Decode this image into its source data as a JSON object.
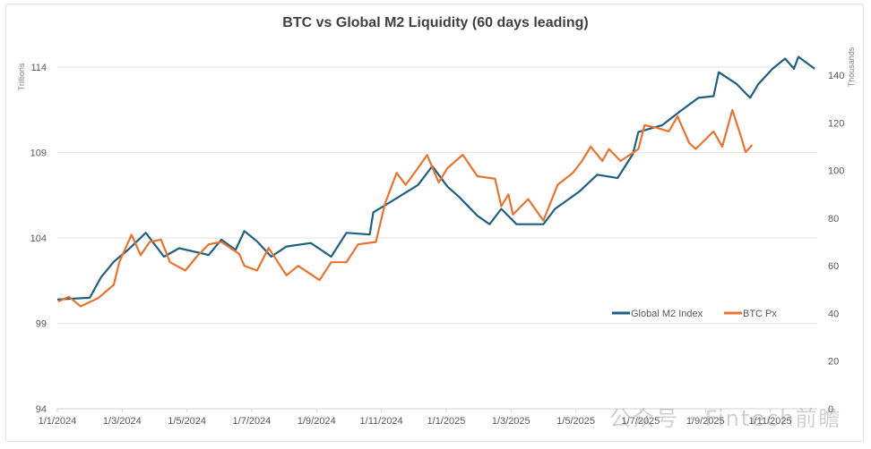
{
  "chart_data": {
    "type": "line",
    "title": "BTC vs Global M2 Liquidity (60 days leading)",
    "x_unit": "months since 1/1/2024",
    "x_tick_labels": [
      "1/1/2024",
      "1/3/2024",
      "1/5/2024",
      "1/7/2024",
      "1/9/2024",
      "1/11/2024",
      "1/1/2025",
      "1/3/2025",
      "1/5/2025",
      "1/7/2025",
      "1/9/2025",
      "1/11/2025"
    ],
    "xlim": [
      0,
      23.45
    ],
    "ylabel": "Trillions",
    "ylim": [
      94,
      114
    ],
    "y_ticks": [
      94,
      99,
      104,
      109,
      114
    ],
    "y2label": "Thousands",
    "y2lim": [
      0,
      143.4
    ],
    "y2_ticks": [
      0,
      20,
      40,
      60,
      80,
      100,
      120,
      140
    ],
    "grid": true,
    "legend_position": "bottom-right",
    "series": [
      {
        "name": "Global M2 Index",
        "axis": "left",
        "color": "#1f5f7f",
        "x": [
          0,
          1.0,
          1.35,
          1.74,
          2.18,
          2.73,
          3.29,
          3.76,
          4.67,
          5.06,
          5.5,
          5.77,
          6.16,
          6.6,
          7.07,
          7.82,
          8.45,
          8.92,
          9.64,
          9.75,
          10.19,
          11.13,
          11.57,
          12.04,
          12.4,
          12.96,
          13.34,
          13.7,
          14.17,
          15.0,
          15.36,
          16.1,
          16.66,
          17.29,
          17.76,
          17.93,
          18.67,
          19.14,
          19.78,
          20.25,
          20.41,
          20.97,
          21.38,
          21.63,
          22.07,
          22.46,
          22.73,
          22.87,
          23.37
        ],
        "values": [
          100.4,
          100.5,
          101.7,
          102.6,
          103.3,
          104.3,
          102.9,
          103.4,
          103.0,
          103.9,
          103.3,
          104.4,
          103.8,
          102.9,
          103.5,
          103.7,
          102.9,
          104.3,
          104.2,
          105.5,
          106.0,
          107.1,
          108.2,
          107.0,
          106.4,
          105.3,
          104.8,
          105.7,
          104.8,
          104.8,
          105.7,
          106.7,
          107.7,
          107.5,
          108.9,
          110.2,
          110.6,
          111.3,
          112.2,
          112.3,
          113.7,
          113.0,
          112.2,
          113.0,
          113.9,
          114.5,
          113.9,
          114.6,
          113.9
        ]
      },
      {
        "name": "BTC Px",
        "axis": "right",
        "color": "#e8732f",
        "x": [
          0.03,
          0.36,
          0.72,
          1.27,
          1.74,
          1.91,
          2.29,
          2.57,
          2.85,
          3.2,
          3.48,
          3.95,
          4.31,
          4.67,
          5.06,
          5.61,
          5.77,
          6.16,
          6.52,
          7.07,
          7.43,
          8.09,
          8.45,
          8.92,
          9.28,
          9.83,
          10.11,
          10.47,
          10.75,
          11.13,
          11.41,
          11.77,
          12.04,
          12.51,
          12.96,
          13.51,
          13.7,
          13.92,
          14.06,
          14.53,
          15.0,
          15.44,
          15.91,
          16.19,
          16.46,
          16.82,
          17.02,
          17.38,
          17.93,
          18.12,
          18.48,
          18.87,
          19.14,
          19.5,
          19.7,
          20.25,
          20.52,
          20.83,
          21.08,
          21.24,
          21.44
        ],
        "values": [
          45,
          47,
          43,
          46.5,
          52,
          61.5,
          73,
          64.5,
          70,
          71,
          61.5,
          58,
          64,
          69,
          70,
          65,
          60,
          58,
          67.5,
          56,
          60,
          54,
          61.5,
          61.5,
          69,
          70,
          86,
          99,
          94,
          101,
          106.5,
          95,
          101,
          106.6,
          97.6,
          96.5,
          85,
          90,
          81.5,
          88,
          79,
          94,
          99,
          104,
          110,
          104,
          109,
          104,
          109,
          119,
          118,
          116.4,
          122.7,
          111.5,
          109,
          116.4,
          110,
          125.4,
          115,
          107.7,
          110.7
        ]
      }
    ]
  },
  "watermark": "公众号 · Fintech前瞻"
}
